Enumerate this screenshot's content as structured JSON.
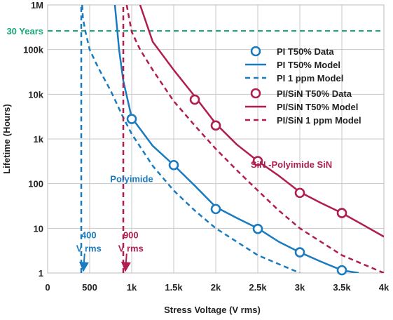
{
  "chart_data": {
    "type": "line",
    "xlabel": "Stress Voltage (V rms)",
    "ylabel": "Lifetime (Hours)",
    "x_scale": "linear",
    "y_scale": "log",
    "xlim": [
      0,
      4000
    ],
    "ylim": [
      1,
      1000000
    ],
    "grid": true,
    "x_ticks": [
      {
        "v": 0,
        "label": "0"
      },
      {
        "v": 500,
        "label": "500"
      },
      {
        "v": 1000,
        "label": "1k"
      },
      {
        "v": 1500,
        "label": "1.5k"
      },
      {
        "v": 2000,
        "label": "2k"
      },
      {
        "v": 2500,
        "label": "2.5k"
      },
      {
        "v": 3000,
        "label": "3k"
      },
      {
        "v": 3500,
        "label": "3.5k"
      },
      {
        "v": 4000,
        "label": "4k"
      }
    ],
    "y_ticks": [
      {
        "v": 1,
        "label": "1"
      },
      {
        "v": 10,
        "label": "10"
      },
      {
        "v": 100,
        "label": "100"
      },
      {
        "v": 1000,
        "label": "1k"
      },
      {
        "v": 10000,
        "label": "10k"
      },
      {
        "v": 100000,
        "label": "100k"
      },
      {
        "v": 1000000,
        "label": "1M"
      }
    ],
    "reference_line": {
      "label": "30 Years",
      "y": 262800,
      "color": "#1aa77a"
    },
    "legend_position": "top-right",
    "colors": {
      "pi": "#1a7bbf",
      "sin": "#b01e4f"
    },
    "series": [
      {
        "name": "PI T50% Data",
        "kind": "markers",
        "color": "#1a7bbf",
        "x": [
          1000,
          1500,
          2000,
          2500,
          3000,
          3500
        ],
        "y": [
          2800,
          260,
          27,
          9.7,
          2.9,
          1.15
        ]
      },
      {
        "name": "PI T50% Model",
        "kind": "solid",
        "color": "#1a7bbf",
        "x": [
          800,
          850,
          900,
          1000,
          1250,
          1500,
          1750,
          2000,
          2250,
          2500,
          2750,
          3000,
          3250,
          3500,
          3700
        ],
        "y": [
          1000000,
          100000,
          20000,
          3000,
          700,
          260,
          90,
          30,
          17,
          10,
          5,
          2.9,
          1.8,
          1.15,
          1
        ]
      },
      {
        "name": "PI 1 ppm Model",
        "kind": "dashed",
        "color": "#1a7bbf",
        "x": [
          410,
          420,
          450,
          500,
          600,
          750,
          900,
          1000,
          1250,
          1500,
          1750,
          2000,
          2500,
          3000
        ],
        "y": [
          1000000,
          500000,
          250000,
          100000,
          40000,
          12000,
          3000,
          1300,
          250,
          70,
          25,
          10,
          2.5,
          1
        ]
      },
      {
        "name": "PI/SiN T50% Data",
        "kind": "markers",
        "color": "#b01e4f",
        "x": [
          1750,
          2000,
          2500,
          3000,
          3500
        ],
        "y": [
          7600,
          2000,
          320,
          62,
          22
        ]
      },
      {
        "name": "PI/SiN T50% Model",
        "kind": "solid",
        "color": "#b01e4f",
        "x": [
          1100,
          1250,
          1500,
          1750,
          2000,
          2250,
          2500,
          2750,
          3000,
          3250,
          3500,
          3750,
          4000
        ],
        "y": [
          1000000,
          150000,
          35000,
          9000,
          2200,
          750,
          320,
          150,
          65,
          37,
          22,
          12,
          6.5
        ]
      },
      {
        "name": "PI/SiN 1 ppm Model",
        "kind": "dashed",
        "color": "#b01e4f",
        "x": [
          940,
          1000,
          1100,
          1250,
          1500,
          1750,
          2000,
          2250,
          2500,
          2750,
          3000,
          3250,
          3500,
          4000
        ],
        "y": [
          1000000,
          250000,
          100000,
          35000,
          7000,
          2000,
          600,
          200,
          70,
          25,
          10,
          5,
          2.5,
          1
        ]
      },
      {
        "name": "",
        "kind": "vline",
        "color": "#1a7bbf",
        "x": [
          400,
          400
        ],
        "y": [
          1,
          1000000
        ]
      },
      {
        "name": "",
        "kind": "vline",
        "color": "#b01e4f",
        "x": [
          900,
          900
        ],
        "y": [
          1,
          1000000
        ]
      }
    ],
    "annotations": [
      {
        "id": "polyimide",
        "text": "Polyimide",
        "color": "#1a7bbf",
        "x": 1000,
        "y": 130
      },
      {
        "id": "sin-polyimide",
        "text": "SiN -Polyimide SiN",
        "color": "#b01e4f",
        "x": 2900,
        "y": 270
      },
      {
        "id": "v400",
        "lines": [
          "400",
          "V rms"
        ],
        "color": "#1a7bbf",
        "x": 490,
        "y": 6,
        "arrow_to": [
          400,
          1
        ]
      },
      {
        "id": "v900",
        "lines": [
          "900",
          "V rms"
        ],
        "color": "#b01e4f",
        "x": 990,
        "y": 6,
        "arrow_to": [
          900,
          1
        ]
      }
    ]
  }
}
